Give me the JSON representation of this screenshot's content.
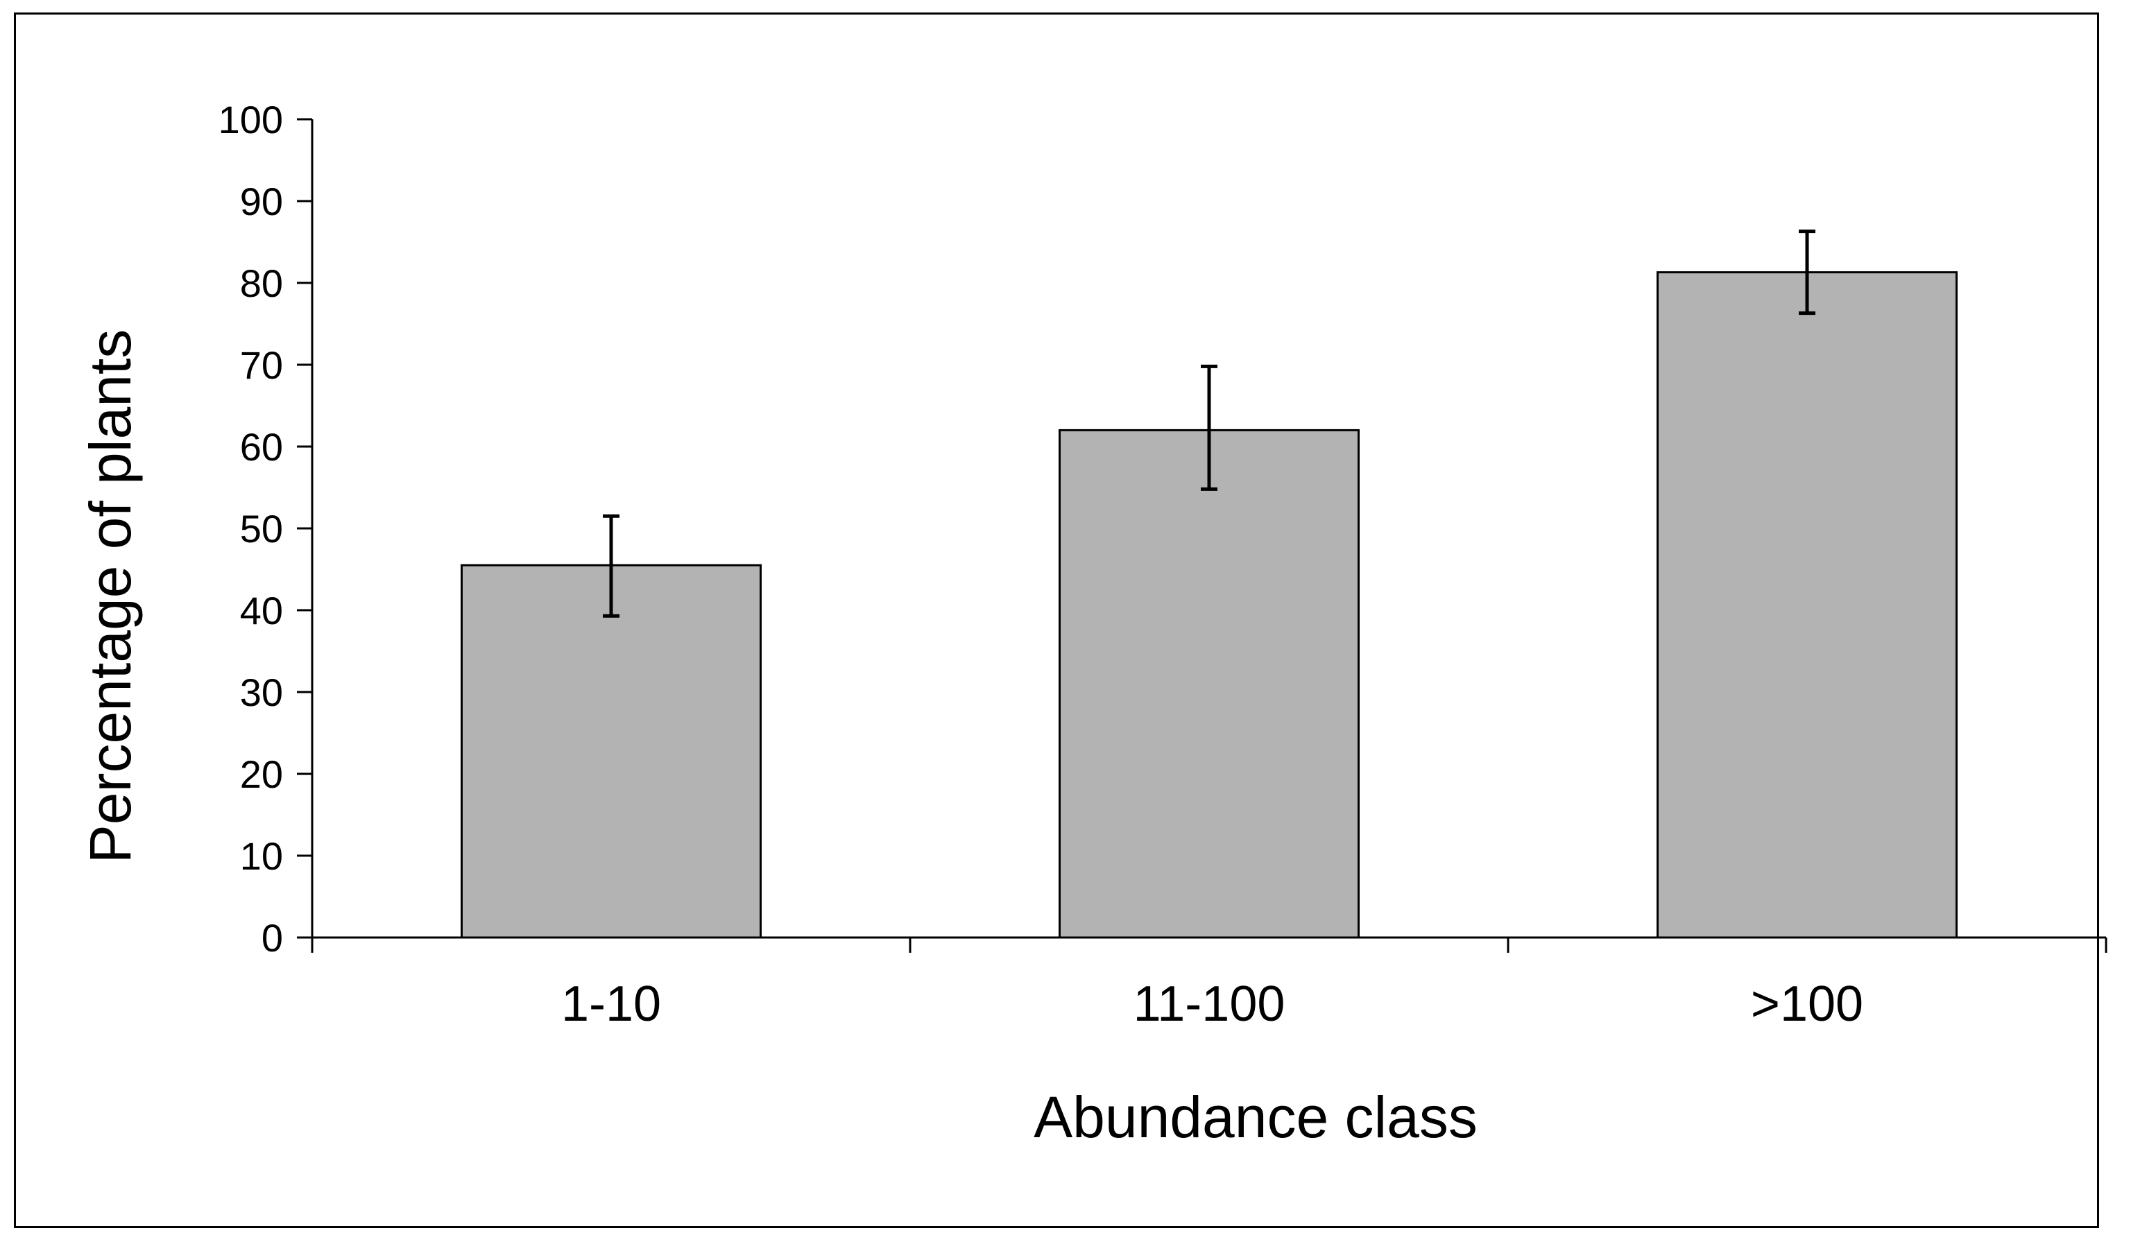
{
  "chart_data": {
    "type": "bar",
    "title": "",
    "xlabel": "Abundance class",
    "ylabel": "Percentage of plants",
    "categories": [
      "1-10",
      "11-100",
      ">100"
    ],
    "values": [
      45.5,
      62,
      81.3
    ],
    "error_bars": [
      {
        "low": 39.3,
        "high": 51.5
      },
      {
        "low": 54.8,
        "high": 69.8
      },
      {
        "low": 76.3,
        "high": 86.3
      }
    ],
    "ylim": [
      0,
      100
    ],
    "yticks": [
      "0",
      "10",
      "20",
      "30",
      "40",
      "50",
      "60",
      "70",
      "80",
      "90",
      "100"
    ],
    "grid": false,
    "legend": "none",
    "colors": {
      "bar": "#b3b3b3",
      "outline": "#000000",
      "background": "#ffffff"
    }
  }
}
